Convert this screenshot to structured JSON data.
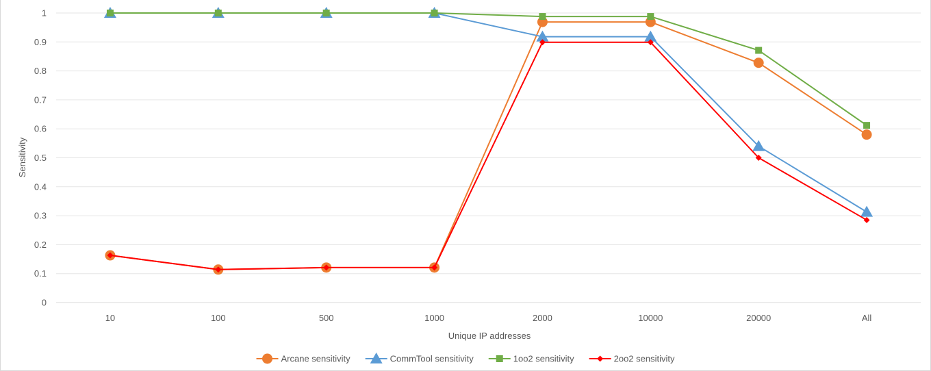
{
  "chart_data": {
    "type": "line",
    "title": "",
    "xlabel": "Unique IP addresses",
    "ylabel": "Sensitivity",
    "categories": [
      "10",
      "100",
      "500",
      "1000",
      "2000",
      "10000",
      "20000",
      "All"
    ],
    "ylim": [
      0,
      1
    ],
    "yticks": [
      "0",
      "0.1",
      "0.2",
      "0.3",
      "0.4",
      "0.5",
      "0.6",
      "0.7",
      "0.8",
      "0.9",
      "1"
    ],
    "grid": true,
    "legend_position": "bottom",
    "series": [
      {
        "name": "Arcane sensitivity",
        "color": "#ED7D31",
        "marker": "circle",
        "values": [
          0.163,
          0.114,
          0.121,
          0.121,
          0.969,
          0.969,
          0.828,
          0.58
        ]
      },
      {
        "name": "CommTool sensitivity",
        "color": "#5B9BD5",
        "marker": "triangle",
        "values": [
          1.0,
          1.0,
          1.0,
          1.0,
          0.918,
          0.918,
          0.54,
          0.313
        ]
      },
      {
        "name": "1oo2 sensitivity",
        "color": "#70AD47",
        "marker": "square",
        "values": [
          1.0,
          1.0,
          1.0,
          1.0,
          0.988,
          0.988,
          0.871,
          0.612
        ]
      },
      {
        "name": "2oo2 sensitivity",
        "color": "#FF0000",
        "marker": "diamond",
        "values": [
          0.163,
          0.114,
          0.121,
          0.121,
          0.899,
          0.899,
          0.5,
          0.285
        ]
      }
    ]
  }
}
